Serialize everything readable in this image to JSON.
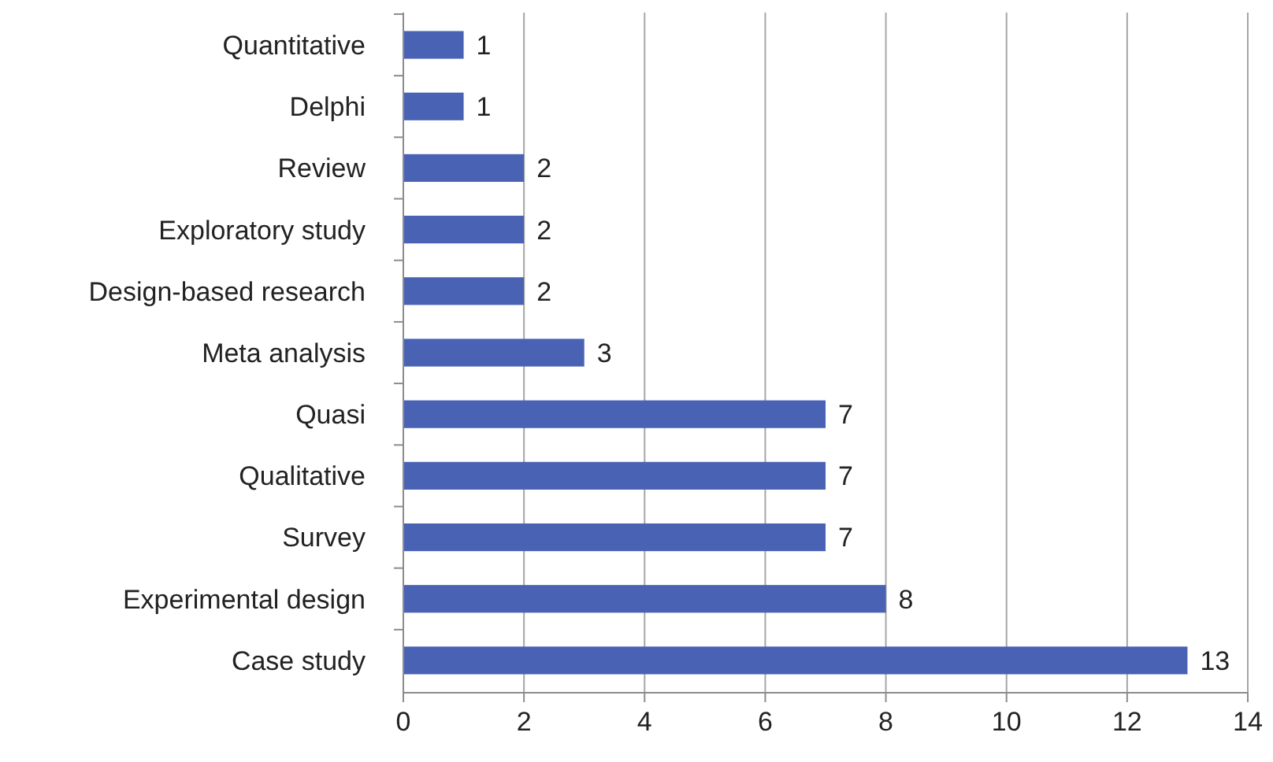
{
  "chart_data": {
    "type": "bar",
    "orientation": "horizontal",
    "categories": [
      "Quantitative",
      "Delphi",
      "Review",
      "Exploratory study",
      "Design-based research",
      "Meta analysis",
      "Quasi",
      "Qualitative",
      "Survey",
      "Experimental design",
      "Case study"
    ],
    "values": [
      1,
      1,
      2,
      2,
      2,
      3,
      7,
      7,
      7,
      8,
      13
    ],
    "color": "#4a62b4",
    "xlim": [
      0,
      14
    ],
    "xticks": [
      0,
      2,
      4,
      6,
      8,
      10,
      12,
      14
    ],
    "grid": "x",
    "data_labels": true
  }
}
